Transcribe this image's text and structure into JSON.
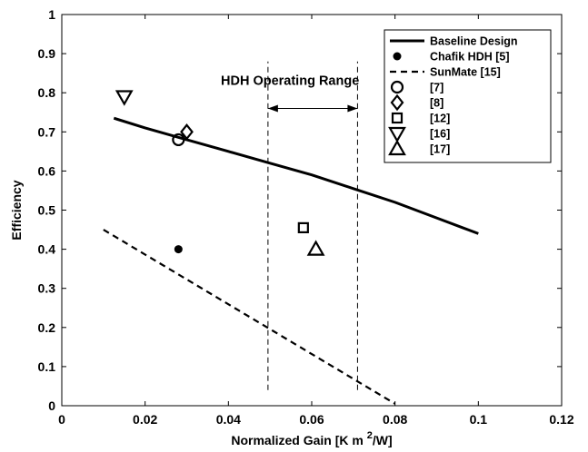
{
  "chart_data": {
    "type": "scatter",
    "xlabel": "Normalized Gain [K m",
    "xlabel_sup": "2",
    "xlabel_tail": "/W]",
    "ylabel": "Efficiency",
    "xlim": [
      0,
      0.12
    ],
    "ylim": [
      0,
      1
    ],
    "xticks": [
      0,
      0.02,
      0.04,
      0.06,
      0.08,
      0.1,
      0.12
    ],
    "xtick_labels": [
      "0",
      "0.02",
      "0.04",
      "0.06",
      "0.08",
      "0.1",
      "0.12"
    ],
    "yticks": [
      0,
      0.1,
      0.2,
      0.3,
      0.4,
      0.5,
      0.6,
      0.7,
      0.8,
      0.9,
      1
    ],
    "ytick_labels": [
      "0",
      "0.1",
      "0.2",
      "0.3",
      "0.4",
      "0.5",
      "0.6",
      "0.7",
      "0.8",
      "0.9",
      "1"
    ],
    "grid": false,
    "legend_position": "top-right",
    "series": [
      {
        "name": "Baseline Design",
        "kind": "line",
        "style": "solid",
        "x": [
          0.0125,
          0.02,
          0.03,
          0.04,
          0.05,
          0.06,
          0.07,
          0.08,
          0.09,
          0.1
        ],
        "y": [
          0.735,
          0.71,
          0.68,
          0.65,
          0.62,
          0.59,
          0.555,
          0.52,
          0.48,
          0.44
        ]
      },
      {
        "name": "Chafik HDH [5]",
        "kind": "marker",
        "marker": "filled-circle",
        "x": [
          0.028
        ],
        "y": [
          0.4
        ]
      },
      {
        "name": "SunMate [15]",
        "kind": "line",
        "style": "dashed",
        "x": [
          0.01,
          0.08
        ],
        "y": [
          0.45,
          0.005
        ]
      },
      {
        "name": "[7]",
        "kind": "marker",
        "marker": "circle",
        "x": [
          0.028
        ],
        "y": [
          0.68
        ]
      },
      {
        "name": "[8]",
        "kind": "marker",
        "marker": "diamond",
        "x": [
          0.03
        ],
        "y": [
          0.7
        ]
      },
      {
        "name": "[12]",
        "kind": "marker",
        "marker": "square",
        "x": [
          0.058
        ],
        "y": [
          0.455
        ]
      },
      {
        "name": "[16]",
        "kind": "marker",
        "marker": "triangle-down",
        "x": [
          0.015
        ],
        "y": [
          0.79
        ]
      },
      {
        "name": "[17]",
        "kind": "marker",
        "marker": "triangle-up",
        "x": [
          0.061
        ],
        "y": [
          0.4
        ]
      }
    ],
    "annotations": [
      {
        "text": "HDH Operating Range",
        "range_x": [
          0.0495,
          0.071
        ],
        "label_y": 0.82,
        "arrow_y": 0.76,
        "line_y": [
          0.04,
          0.88
        ]
      }
    ]
  }
}
